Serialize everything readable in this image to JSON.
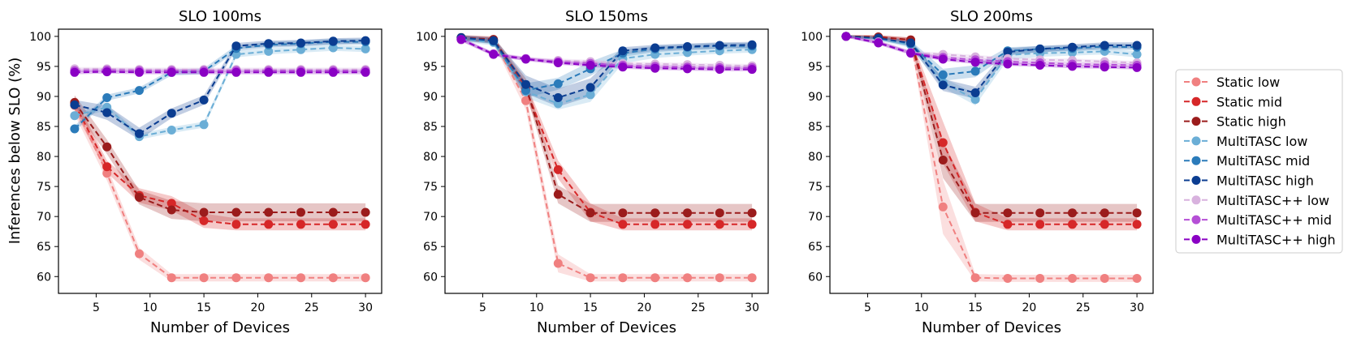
{
  "figure": {
    "ylabel": "Inferences below SLO (%)"
  },
  "series_styles": [
    {
      "name": "Static low",
      "color": "#f08080"
    },
    {
      "name": "Static mid",
      "color": "#d62728"
    },
    {
      "name": "Static high",
      "color": "#9b1c1c"
    },
    {
      "name": "MultiTASC low",
      "color": "#6baed6"
    },
    {
      "name": "MultiTASC mid",
      "color": "#2b7bba"
    },
    {
      "name": "MultiTASC high",
      "color": "#0b3d91"
    },
    {
      "name": "MultiTASC++ low",
      "color": "#d8b2de"
    },
    {
      "name": "MultiTASC++ mid",
      "color": "#b54fd6"
    },
    {
      "name": "MultiTASC++ high",
      "color": "#8a00c4"
    }
  ],
  "legend": {
    "placement": "right"
  },
  "chart_data": [
    {
      "type": "line",
      "title": "SLO 100ms",
      "xlabel": "Number of Devices",
      "ylabel": "Inferences below SLO (%)",
      "xlim": [
        1.5,
        31.5
      ],
      "ylim": [
        57.2,
        101.2
      ],
      "xticks": [
        5,
        10,
        15,
        20,
        25,
        30
      ],
      "yticks": [
        60,
        65,
        70,
        75,
        80,
        85,
        90,
        95,
        100
      ],
      "x": [
        3,
        6,
        9,
        12,
        15,
        18,
        21,
        24,
        27,
        30
      ],
      "series": [
        {
          "name": "Static low",
          "values": [
            88.5,
            77.2,
            63.8,
            59.8,
            59.8,
            59.8,
            59.8,
            59.8,
            59.8,
            59.8
          ],
          "band": [
            1.5,
            1.2,
            1.0,
            0.6,
            0.6,
            0.6,
            0.6,
            0.6,
            0.6,
            0.6
          ]
        },
        {
          "name": "Static mid",
          "values": [
            88.8,
            78.3,
            73.5,
            72.2,
            69.3,
            68.7,
            68.7,
            68.7,
            68.7,
            68.7
          ],
          "band": [
            1.2,
            1.0,
            1.2,
            1.2,
            1.2,
            1.0,
            1.0,
            1.0,
            1.0,
            1.0
          ]
        },
        {
          "name": "Static high",
          "values": [
            89.0,
            81.6,
            73.2,
            71.1,
            70.7,
            70.7,
            70.7,
            70.7,
            70.7,
            70.7
          ],
          "band": [
            1.2,
            1.2,
            1.2,
            1.5,
            1.5,
            1.5,
            1.5,
            1.5,
            1.5,
            1.5
          ]
        },
        {
          "name": "MultiTASC low",
          "values": [
            86.8,
            88.2,
            83.3,
            84.4,
            85.3,
            97.0,
            97.5,
            97.8,
            98.1,
            97.9
          ],
          "band": [
            0.5,
            0.5,
            0.5,
            0.5,
            0.5,
            0.5,
            0.5,
            0.5,
            0.5,
            0.5
          ]
        },
        {
          "name": "MultiTASC mid",
          "values": [
            84.6,
            89.8,
            91.0,
            94.0,
            94.2,
            98.0,
            98.6,
            98.8,
            99.1,
            99.1
          ],
          "band": [
            0.5,
            0.5,
            0.5,
            0.5,
            0.5,
            0.5,
            0.5,
            0.5,
            0.5,
            0.5
          ]
        },
        {
          "name": "MultiTASC high",
          "values": [
            88.6,
            87.3,
            83.8,
            87.2,
            89.4,
            98.4,
            98.8,
            98.9,
            99.2,
            99.3
          ],
          "band": [
            0.8,
            1.2,
            1.0,
            0.8,
            0.8,
            0.5,
            0.5,
            0.5,
            0.5,
            0.5
          ]
        },
        {
          "name": "MultiTASC++ low",
          "values": [
            94.6,
            94.6,
            94.5,
            94.5,
            94.5,
            94.5,
            94.5,
            94.5,
            94.5,
            94.5
          ],
          "band": [
            0.3,
            0.3,
            0.3,
            0.3,
            0.3,
            0.3,
            0.3,
            0.3,
            0.3,
            0.3
          ]
        },
        {
          "name": "MultiTASC++ mid",
          "values": [
            94.3,
            94.4,
            94.3,
            94.3,
            94.3,
            94.3,
            94.3,
            94.3,
            94.3,
            94.3
          ],
          "band": [
            0.3,
            0.3,
            0.3,
            0.3,
            0.3,
            0.3,
            0.3,
            0.3,
            0.3,
            0.3
          ]
        },
        {
          "name": "MultiTASC++ high",
          "values": [
            94.0,
            94.1,
            94.0,
            94.0,
            94.0,
            94.0,
            94.0,
            94.0,
            94.0,
            94.0
          ],
          "band": [
            0.3,
            0.3,
            0.3,
            0.3,
            0.3,
            0.3,
            0.3,
            0.3,
            0.3,
            0.3
          ]
        }
      ]
    },
    {
      "type": "line",
      "title": "SLO 150ms",
      "xlabel": "Number of Devices",
      "ylabel": "",
      "xlim": [
        1.5,
        31.5
      ],
      "ylim": [
        57.2,
        101.2
      ],
      "xticks": [
        5,
        10,
        15,
        20,
        25,
        30
      ],
      "yticks": [
        60,
        65,
        70,
        75,
        80,
        85,
        90,
        95,
        100
      ],
      "x": [
        3,
        6,
        9,
        12,
        15,
        18,
        21,
        24,
        27,
        30
      ],
      "series": [
        {
          "name": "Static low",
          "values": [
            99.6,
            99.3,
            89.3,
            62.2,
            59.8,
            59.8,
            59.8,
            59.8,
            59.8,
            59.8
          ],
          "band": [
            0.4,
            0.5,
            1.5,
            1.5,
            0.6,
            0.6,
            0.6,
            0.6,
            0.6,
            0.6
          ]
        },
        {
          "name": "Static mid",
          "values": [
            99.8,
            99.4,
            91.2,
            77.8,
            70.7,
            68.7,
            68.7,
            68.7,
            68.7,
            68.7
          ],
          "band": [
            0.4,
            0.5,
            1.2,
            1.5,
            1.5,
            1.0,
            1.0,
            1.0,
            1.0,
            1.0
          ]
        },
        {
          "name": "Static high",
          "values": [
            99.8,
            99.5,
            91.8,
            73.7,
            70.6,
            70.6,
            70.6,
            70.6,
            70.6,
            70.6
          ],
          "band": [
            0.4,
            0.5,
            1.2,
            1.5,
            1.5,
            1.5,
            1.5,
            1.5,
            1.5,
            1.5
          ]
        },
        {
          "name": "MultiTASC low",
          "values": [
            99.5,
            99.0,
            90.8,
            88.8,
            90.3,
            96.3,
            97.0,
            97.3,
            97.6,
            97.8
          ],
          "band": [
            0.4,
            0.5,
            1.0,
            1.0,
            1.2,
            0.8,
            0.6,
            0.5,
            0.5,
            0.5
          ]
        },
        {
          "name": "MultiTASC mid",
          "values": [
            99.7,
            99.2,
            91.0,
            92.1,
            94.6,
            97.2,
            97.9,
            98.2,
            98.4,
            98.4
          ],
          "band": [
            0.4,
            0.5,
            1.2,
            1.0,
            1.2,
            0.6,
            0.5,
            0.5,
            0.5,
            0.5
          ]
        },
        {
          "name": "MultiTASC high",
          "values": [
            99.8,
            99.3,
            92.0,
            89.8,
            91.5,
            97.6,
            98.1,
            98.3,
            98.5,
            98.6
          ],
          "band": [
            0.4,
            0.5,
            1.5,
            1.5,
            1.5,
            0.6,
            0.5,
            0.5,
            0.5,
            0.5
          ]
        },
        {
          "name": "MultiTASC++ low",
          "values": [
            99.4,
            97.0,
            96.2,
            96.0,
            95.8,
            95.5,
            95.4,
            95.3,
            95.2,
            95.1
          ],
          "band": [
            0.3,
            0.3,
            0.3,
            0.3,
            0.3,
            0.3,
            0.3,
            0.3,
            0.3,
            0.3
          ]
        },
        {
          "name": "MultiTASC++ mid",
          "values": [
            99.5,
            97.1,
            96.3,
            95.8,
            95.5,
            95.2,
            95.0,
            94.9,
            94.8,
            94.8
          ],
          "band": [
            0.3,
            0.3,
            0.3,
            0.3,
            0.3,
            0.3,
            0.3,
            0.3,
            0.3,
            0.3
          ]
        },
        {
          "name": "MultiTASC++ high",
          "values": [
            99.5,
            97.0,
            96.2,
            95.6,
            95.2,
            94.9,
            94.7,
            94.6,
            94.5,
            94.5
          ],
          "band": [
            0.3,
            0.3,
            0.3,
            0.3,
            0.3,
            0.3,
            0.3,
            0.3,
            0.3,
            0.3
          ]
        }
      ]
    },
    {
      "type": "line",
      "title": "SLO 200ms",
      "xlabel": "Number of Devices",
      "ylabel": "",
      "xlim": [
        1.5,
        31.5
      ],
      "ylim": [
        57.2,
        101.2
      ],
      "xticks": [
        5,
        10,
        15,
        20,
        25,
        30
      ],
      "yticks": [
        60,
        65,
        70,
        75,
        80,
        85,
        90,
        95,
        100
      ],
      "x": [
        3,
        6,
        9,
        12,
        15,
        18,
        21,
        24,
        27,
        30
      ],
      "series": [
        {
          "name": "Static low",
          "values": [
            100.0,
            99.8,
            99.3,
            71.6,
            59.8,
            59.7,
            59.7,
            59.7,
            59.7,
            59.7
          ],
          "band": [
            0.2,
            0.3,
            0.4,
            4.5,
            0.6,
            0.6,
            0.6,
            0.6,
            0.6,
            0.6
          ]
        },
        {
          "name": "Static mid",
          "values": [
            100.0,
            99.9,
            99.4,
            82.3,
            70.7,
            68.7,
            68.7,
            68.7,
            68.7,
            68.7
          ],
          "band": [
            0.2,
            0.3,
            0.4,
            3.5,
            1.5,
            1.0,
            1.0,
            1.0,
            1.0,
            1.0
          ]
        },
        {
          "name": "Static high",
          "values": [
            100.0,
            99.9,
            99.4,
            79.4,
            70.6,
            70.6,
            70.6,
            70.6,
            70.6,
            70.6
          ],
          "band": [
            0.2,
            0.3,
            0.4,
            3.0,
            1.5,
            1.5,
            1.5,
            1.5,
            1.5,
            1.5
          ]
        },
        {
          "name": "MultiTASC low",
          "values": [
            100.0,
            99.6,
            98.6,
            92.3,
            89.5,
            96.9,
            97.2,
            97.3,
            97.5,
            97.0
          ],
          "band": [
            0.2,
            0.3,
            0.5,
            0.8,
            1.0,
            0.8,
            0.6,
            0.5,
            0.5,
            0.5
          ]
        },
        {
          "name": "MultiTASC mid",
          "values": [
            100.0,
            99.7,
            98.8,
            93.6,
            94.2,
            97.6,
            97.9,
            98.0,
            98.3,
            98.2
          ],
          "band": [
            0.2,
            0.3,
            0.5,
            1.0,
            1.0,
            0.6,
            0.5,
            0.5,
            0.5,
            0.5
          ]
        },
        {
          "name": "MultiTASC high",
          "values": [
            100.0,
            99.7,
            98.9,
            91.9,
            90.6,
            97.4,
            97.9,
            98.2,
            98.5,
            98.5
          ],
          "band": [
            0.2,
            0.3,
            0.5,
            1.0,
            1.0,
            0.6,
            0.5,
            0.5,
            0.5,
            0.5
          ]
        },
        {
          "name": "MultiTASC++ low",
          "values": [
            100.0,
            99.1,
            97.3,
            97.0,
            96.6,
            96.3,
            96.1,
            96.0,
            95.8,
            95.6
          ],
          "band": [
            0.2,
            0.3,
            0.3,
            0.3,
            0.3,
            0.3,
            0.3,
            0.3,
            0.3,
            0.3
          ]
        },
        {
          "name": "MultiTASC++ mid",
          "values": [
            100.0,
            99.0,
            97.3,
            96.5,
            96.1,
            95.8,
            95.6,
            95.4,
            95.3,
            95.2
          ],
          "band": [
            0.2,
            0.3,
            0.3,
            0.3,
            0.3,
            0.3,
            0.3,
            0.3,
            0.3,
            0.3
          ]
        },
        {
          "name": "MultiTASC++ high",
          "values": [
            100.0,
            98.9,
            97.2,
            96.2,
            95.7,
            95.4,
            95.2,
            95.0,
            94.9,
            94.8
          ],
          "band": [
            0.2,
            0.3,
            0.3,
            0.3,
            0.3,
            0.3,
            0.3,
            0.3,
            0.3,
            0.3
          ]
        }
      ]
    }
  ]
}
